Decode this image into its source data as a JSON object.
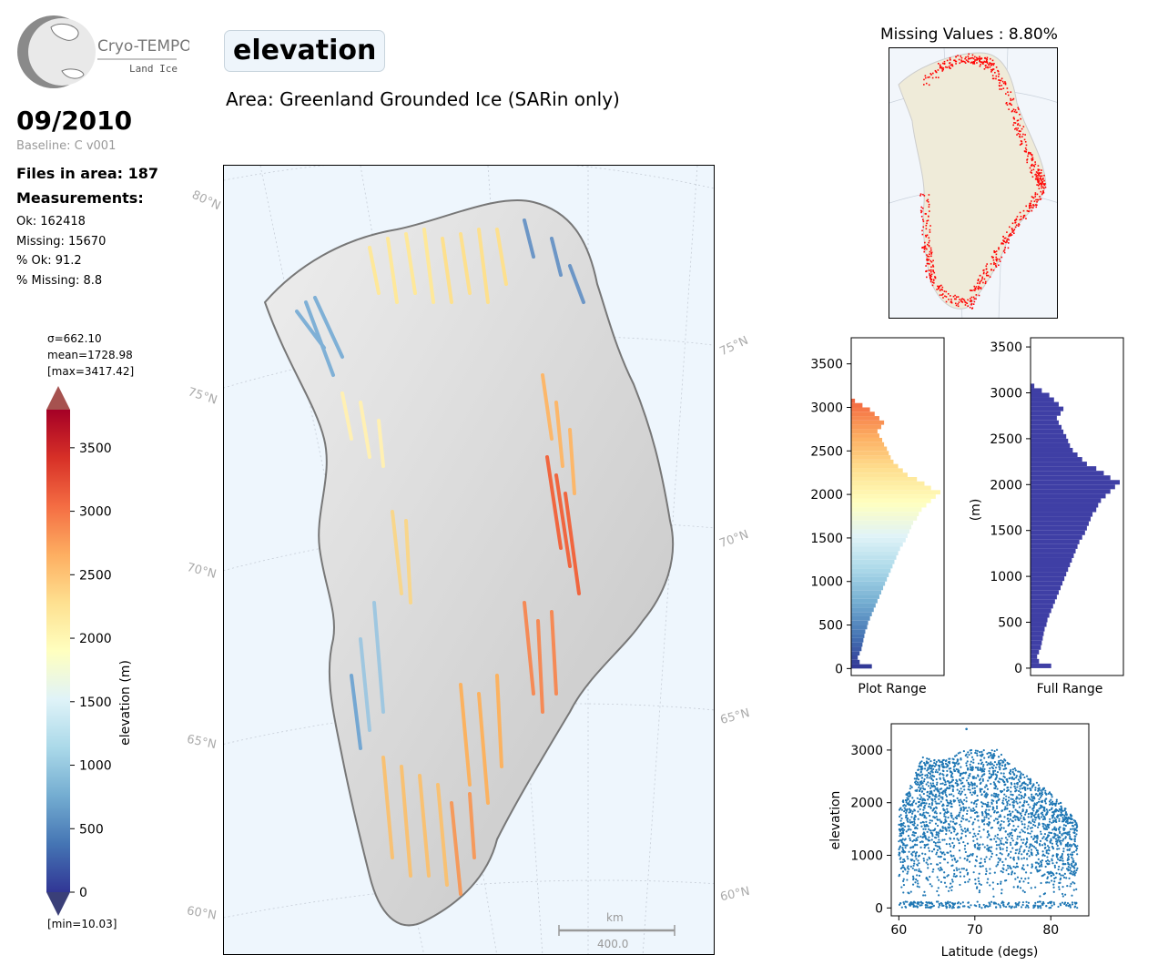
{
  "logo": {
    "name": "Cryo-TEMPO",
    "subtitle": "Land Ice"
  },
  "header": {
    "date": "09/2010",
    "baseline": "Baseline: C v001",
    "files_in_area": "Files in area: 187",
    "measurements_label": "Measurements:",
    "stats": [
      "Ok: 162418",
      "Missing: 15670",
      "% Ok: 91.2",
      "% Missing: 8.8"
    ],
    "title": "elevation",
    "area": "Area: Greenland Grounded Ice (SARin only)",
    "missing_values": "Missing Values : 8.80%"
  },
  "colorbar": {
    "sigma": "σ=662.10",
    "mean": "mean=1728.98",
    "max": "[max=3417.42]",
    "min": "[min=10.03]",
    "label": "elevation (m)",
    "range": [
      0,
      3800
    ],
    "ticks": [
      0,
      500,
      1000,
      1500,
      2000,
      2500,
      3000,
      3500
    ],
    "colors": [
      "#313695",
      "#4575b4",
      "#74add1",
      "#abd9e9",
      "#e0f3f8",
      "#ffffbf",
      "#fee090",
      "#fdae61",
      "#f46d43",
      "#d73027",
      "#a50026"
    ],
    "over_color": "#a6524f",
    "under_color": "#3a3f78"
  },
  "map": {
    "lat_labels_left": [
      "80°N",
      "75°N",
      "70°N",
      "65°N",
      "60°N"
    ],
    "lat_labels_right": [
      "75°N",
      "70°N",
      "65°N",
      "60°N"
    ],
    "scalebar": {
      "unit": "km",
      "value": "400.0"
    }
  },
  "chart_data": [
    {
      "type": "bar",
      "orientation": "horizontal",
      "xlabel": "Plot Range",
      "ylabel": "",
      "ylim": [
        -80,
        3800
      ],
      "yticks": [
        0,
        500,
        1000,
        1500,
        2000,
        2500,
        3000,
        3500
      ],
      "bin_width": 50,
      "bin_starts": [
        0,
        50,
        100,
        150,
        200,
        250,
        300,
        350,
        400,
        450,
        500,
        550,
        600,
        650,
        700,
        750,
        800,
        850,
        900,
        950,
        1000,
        1050,
        1100,
        1150,
        1200,
        1250,
        1300,
        1350,
        1400,
        1450,
        1500,
        1550,
        1600,
        1650,
        1700,
        1750,
        1800,
        1850,
        1900,
        1950,
        2000,
        2050,
        2100,
        2150,
        2200,
        2250,
        2300,
        2350,
        2400,
        2450,
        2500,
        2550,
        2600,
        2650,
        2700,
        2750,
        2800,
        2850,
        2900,
        2950,
        3000,
        3050
      ],
      "counts": [
        22,
        9,
        7,
        9,
        11,
        12,
        13,
        14,
        15,
        17,
        18,
        20,
        22,
        24,
        26,
        28,
        30,
        32,
        34,
        36,
        38,
        40,
        42,
        44,
        46,
        48,
        50,
        52,
        55,
        58,
        60,
        62,
        64,
        66,
        70,
        72,
        75,
        80,
        85,
        90,
        95,
        85,
        78,
        70,
        60,
        55,
        50,
        45,
        42,
        40,
        38,
        35,
        33,
        30,
        28,
        32,
        35,
        30,
        25,
        20,
        12,
        4
      ]
    },
    {
      "type": "bar",
      "orientation": "horizontal",
      "xlabel": "Full Range",
      "ylabel": "(m)",
      "ylim": [
        -80,
        3600
      ],
      "yticks": [
        0,
        500,
        1000,
        1500,
        2000,
        2500,
        3000,
        3500
      ],
      "bin_width": 50,
      "bin_starts": [
        0,
        50,
        100,
        150,
        200,
        250,
        300,
        350,
        400,
        450,
        500,
        550,
        600,
        650,
        700,
        750,
        800,
        850,
        900,
        950,
        1000,
        1050,
        1100,
        1150,
        1200,
        1250,
        1300,
        1350,
        1400,
        1450,
        1500,
        1550,
        1600,
        1650,
        1700,
        1750,
        1800,
        1850,
        1900,
        1950,
        2000,
        2050,
        2100,
        2150,
        2200,
        2250,
        2300,
        2350,
        2400,
        2450,
        2500,
        2550,
        2600,
        2650,
        2700,
        2750,
        2800,
        2850,
        2900,
        2950,
        3000,
        3050
      ],
      "counts": [
        22,
        9,
        7,
        9,
        11,
        12,
        13,
        14,
        15,
        17,
        18,
        20,
        22,
        24,
        26,
        28,
        30,
        32,
        34,
        36,
        38,
        40,
        42,
        44,
        46,
        48,
        50,
        52,
        55,
        58,
        60,
        62,
        64,
        66,
        70,
        72,
        75,
        80,
        85,
        90,
        95,
        85,
        78,
        70,
        60,
        55,
        50,
        45,
        42,
        40,
        38,
        35,
        33,
        30,
        28,
        32,
        35,
        30,
        25,
        20,
        12,
        4
      ]
    },
    {
      "type": "scatter",
      "xlabel": "Latitude (degs)",
      "ylabel": "elevation",
      "xlim": [
        59,
        85
      ],
      "ylim": [
        -150,
        3500
      ],
      "xticks": [
        60,
        70,
        80
      ],
      "yticks": [
        0,
        1000,
        2000,
        3000
      ],
      "color": "#1f77b4",
      "upper_envelope": [
        [
          60,
          1900
        ],
        [
          61.5,
          2300
        ],
        [
          63,
          2900
        ],
        [
          65,
          2800
        ],
        [
          67,
          2850
        ],
        [
          68,
          3000
        ],
        [
          70,
          3000
        ],
        [
          72,
          3000
        ],
        [
          73,
          3050
        ],
        [
          75,
          2700
        ],
        [
          77,
          2500
        ],
        [
          78,
          2400
        ],
        [
          80,
          2200
        ],
        [
          82,
          1900
        ],
        [
          83.5,
          1600
        ]
      ],
      "outliers": [
        [
          68.9,
          3400
        ]
      ]
    }
  ]
}
